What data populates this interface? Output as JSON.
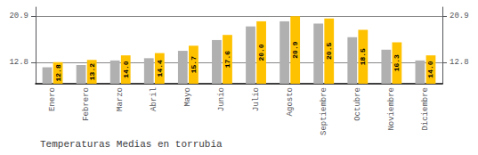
{
  "chart_data": {
    "type": "bar",
    "title": "Temperaturas Medias en torrubia",
    "categories": [
      "Enero",
      "Febrero",
      "Marzo",
      "Abril",
      "Mayo",
      "Junio",
      "Julio",
      "Agosto",
      "Septiembre",
      "Octubre",
      "Noviembre",
      "Diciembre"
    ],
    "series": [
      {
        "color": "#B0B0B0",
        "values": [
          11.9,
          12.3,
          13.1,
          13.5,
          14.8,
          16.7,
          19.1,
          20.0,
          19.6,
          17.2,
          15.0,
          13.1
        ]
      },
      {
        "color": "#FFC200",
        "values": [
          12.8,
          13.2,
          14.0,
          14.4,
          15.7,
          17.6,
          20.0,
          20.9,
          20.5,
          18.5,
          16.3,
          14.0
        ],
        "data_labels": true,
        "value_labels": [
          "12.8",
          "13.2",
          "14.0",
          "14.4",
          "15.7",
          "17.6",
          "20.0",
          "20.9",
          "20.5",
          "18.5",
          "16.3",
          "14.0"
        ]
      }
    ],
    "ylim": [
      9.0,
      22.5
    ],
    "yticks": [
      12.8,
      20.9
    ],
    "y2lim": [
      9.0,
      22.5
    ],
    "y2ticks": [
      12.8,
      20.9
    ],
    "grid": true
  }
}
